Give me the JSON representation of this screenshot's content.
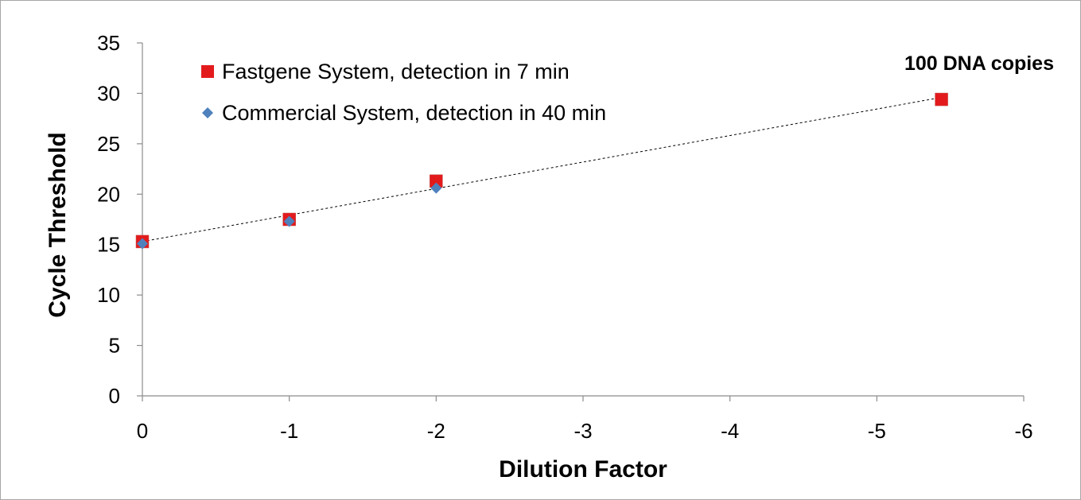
{
  "chart_data": {
    "type": "scatter",
    "xlabel": "Dilution Factor",
    "ylabel": "Cycle Threshold",
    "xlim": [
      0,
      -6
    ],
    "ylim": [
      0,
      35
    ],
    "x_ticks": [
      "0",
      "-1",
      "-2",
      "-3",
      "-4",
      "-5",
      "-6"
    ],
    "y_ticks": [
      "0",
      "5",
      "10",
      "15",
      "20",
      "25",
      "30",
      "35"
    ],
    "grid": false,
    "legend_position": "top-left",
    "series": [
      {
        "name": "Fastgene System, detection in 7 min",
        "marker": "square",
        "color": "#e31a1c",
        "x": [
          0,
          -1,
          -2,
          -5.44
        ],
        "y": [
          15.3,
          17.5,
          21.3,
          29.4
        ]
      },
      {
        "name": "Commercial System, detection in 40 min",
        "marker": "diamond",
        "color": "#4f81bd",
        "x": [
          0,
          -1,
          -2
        ],
        "y": [
          15.1,
          17.3,
          20.6
        ]
      }
    ],
    "trendline": {
      "style": "dotted",
      "color": "#000000",
      "x": [
        0,
        -5.44
      ],
      "y": [
        15.3,
        29.6
      ]
    },
    "annotations": [
      {
        "text": "100 DNA copies",
        "x": -5.44,
        "y": 32.7
      }
    ]
  }
}
